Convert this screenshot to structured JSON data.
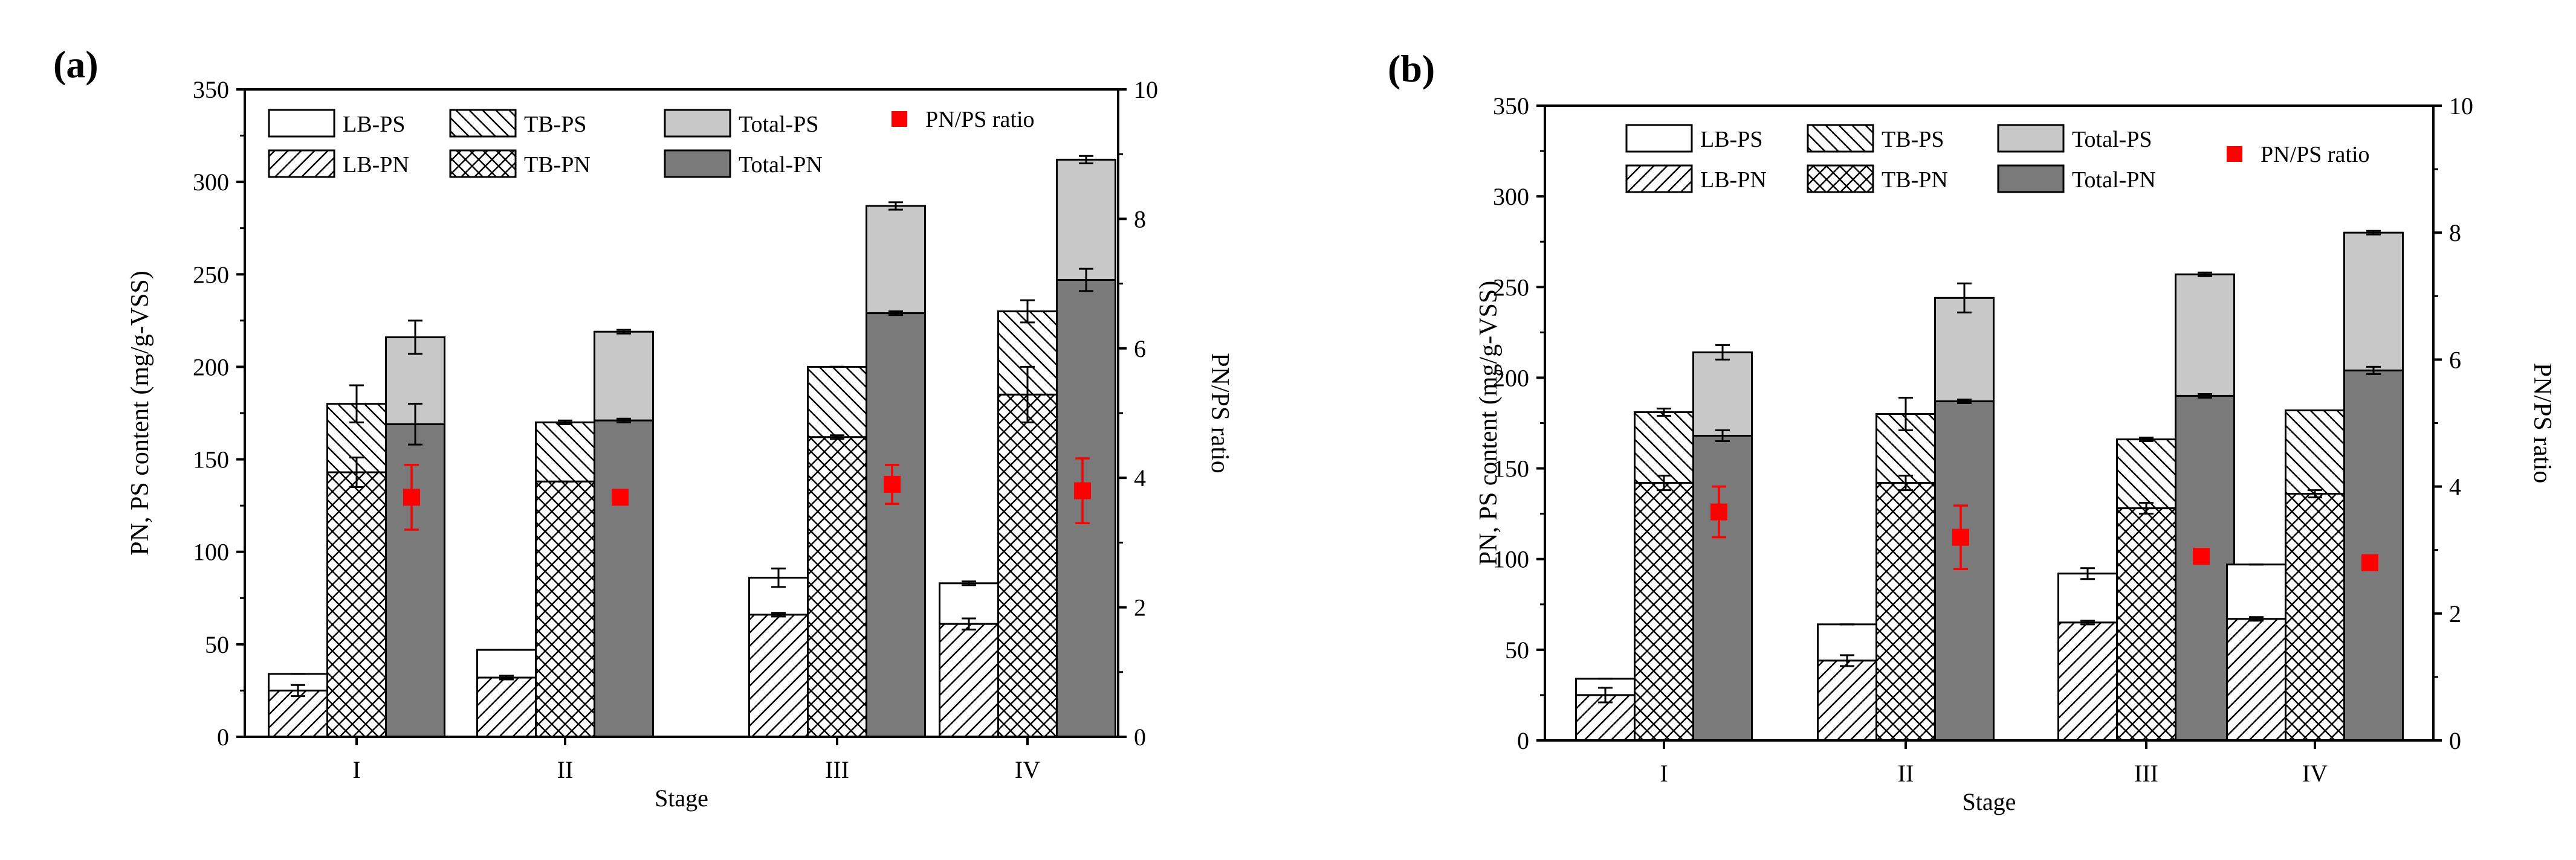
{
  "chart_data": [
    {
      "type": "bar",
      "panel_label": "(a)",
      "xlabel": "Stage",
      "ylabel": "PN, PS content (mg/g-VSS)",
      "y2label": "PN/PS ratio",
      "categories": [
        "I",
        "II",
        "III",
        "IV"
      ],
      "ylim": [
        0,
        350
      ],
      "yticks": [
        0,
        50,
        100,
        150,
        200,
        250,
        300,
        350
      ],
      "y2lim": [
        0,
        10
      ],
      "y2ticks": [
        0,
        2,
        4,
        6,
        8,
        10
      ],
      "grid": false,
      "legend_position": "top-left",
      "legend": [
        "LB-PS",
        "TB-PS",
        "Total-PS",
        "PN/PS ratio",
        "LB-PN",
        "TB-PN",
        "Total-PN"
      ],
      "groups": [
        {
          "name": "LB",
          "pn": [
            25,
            32,
            66,
            61
          ],
          "pn_err": [
            3,
            1,
            1,
            3
          ],
          "total": [
            34,
            47,
            86,
            83
          ],
          "total_err": [
            0,
            0,
            5,
            1
          ]
        },
        {
          "name": "TB",
          "pn": [
            143,
            138,
            162,
            185
          ],
          "pn_err": [
            8,
            0,
            1,
            15
          ],
          "total": [
            180,
            170,
            200,
            230
          ],
          "total_err": [
            10,
            1,
            0,
            6
          ]
        },
        {
          "name": "Total",
          "pn": [
            169,
            171,
            229,
            247
          ],
          "pn_err": [
            11,
            1,
            1,
            6
          ],
          "total": [
            216,
            219,
            287,
            312
          ],
          "total_err": [
            9,
            1,
            2,
            2
          ]
        }
      ],
      "ratio": {
        "name": "PN/PS ratio",
        "values": [
          3.7,
          3.7,
          3.9,
          3.8
        ],
        "errors": [
          0.5,
          0.1,
          0.3,
          0.5
        ]
      },
      "colors": {
        "total_ps": "#c8c8c8",
        "total_pn": "#7a7a7a",
        "ratio": "#ff0000"
      }
    },
    {
      "type": "bar",
      "panel_label": "(b)",
      "xlabel": "Stage",
      "ylabel": "PN, PS content (mg/g-VSS)",
      "y2label": "PN/PS ratio",
      "categories": [
        "I",
        "II",
        "III",
        "IV"
      ],
      "ylim": [
        0,
        350
      ],
      "yticks": [
        0,
        50,
        100,
        150,
        200,
        250,
        300,
        350
      ],
      "y2lim": [
        0,
        10
      ],
      "y2ticks": [
        0,
        2,
        4,
        6,
        8,
        10
      ],
      "grid": false,
      "legend_position": "top-left",
      "legend": [
        "LB-PS",
        "TB-PS",
        "Total-PS",
        "PN/PS ratio",
        "LB-PN",
        "TB-PN",
        "Total-PN"
      ],
      "groups": [
        {
          "name": "LB",
          "pn": [
            25,
            44,
            65,
            67
          ],
          "pn_err": [
            4,
            3,
            1,
            1
          ],
          "total": [
            34,
            64,
            92,
            97
          ],
          "total_err": [
            0,
            0,
            3,
            0
          ]
        },
        {
          "name": "TB",
          "pn": [
            142,
            142,
            128,
            136
          ],
          "pn_err": [
            4,
            4,
            3,
            2
          ],
          "total": [
            181,
            180,
            166,
            182
          ],
          "total_err": [
            2,
            9,
            1,
            0
          ]
        },
        {
          "name": "Total",
          "pn": [
            168,
            187,
            190,
            204
          ],
          "pn_err": [
            3,
            1,
            1,
            2
          ],
          "total": [
            214,
            244,
            257,
            280
          ],
          "total_err": [
            4,
            8,
            1,
            1
          ]
        }
      ],
      "ratio": {
        "name": "PN/PS ratio",
        "values": [
          3.6,
          3.2,
          2.9,
          2.8
        ],
        "errors": [
          0.4,
          0.5,
          0.0,
          0.0
        ]
      },
      "colors": {
        "total_ps": "#c8c8c8",
        "total_pn": "#7a7a7a",
        "ratio": "#ff0000"
      }
    }
  ]
}
